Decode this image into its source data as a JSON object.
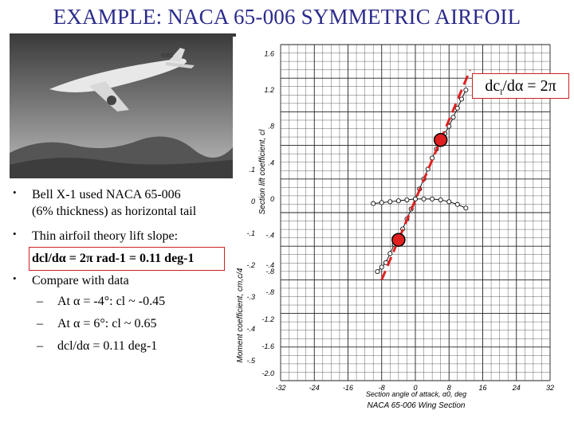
{
  "title": "EXAMPLE: NACA 65-006 SYMMETRIC AIRFOIL",
  "bullets": [
    {
      "text1": "Bell X-1 used NACA 65-006",
      "text2": "(6% thickness) as horizontal tail"
    },
    {
      "text1": "Thin airfoil theory lift slope:",
      "formula": "dcl/dα = 2π rad-1 = 0.11 deg-1"
    },
    {
      "text1": "Compare with data"
    }
  ],
  "sub_bullets": [
    "At α = -4°: cl ~ -0.45",
    "At α = 6°: cl ~ 0.65",
    "dcl/dα = 0.11 deg-1"
  ],
  "slope_label": "dcl/dα = 2π",
  "chart": {
    "caption": "NACA 65-006 Wing Section",
    "xlabel": "Section angle of attack, α0, deg",
    "ylabel_lift": "Section lift coefficient, cl",
    "ylabel_moment": "Moment coefficient, cm,c/4",
    "x_ticks": [
      "-32",
      "-24",
      "-16",
      "-8",
      "0",
      "8",
      "16",
      "24",
      "32"
    ],
    "y_ticks_lift": [
      "1.6",
      "1.2",
      ".8",
      ".4",
      "0",
      "-.4",
      "-.8"
    ],
    "y_ticks_moment": [
      ".1",
      "0",
      "-.1",
      "-.2",
      "-.3",
      "-.4",
      "-.5"
    ],
    "y_ticks_cm": [
      "-.4",
      "-.8",
      "-1.2",
      "-1.6",
      "-2.0"
    ]
  },
  "chart_data": {
    "type": "scatter",
    "title": "NACA 65-006 Wing Section",
    "xlabel": "Section angle of attack, α0, deg",
    "ylabel": "Section lift coefficient, cl",
    "xlim": [
      -32,
      32
    ],
    "ylim": [
      -2.0,
      1.7
    ],
    "series": [
      {
        "name": "",
        "x": [
          -9,
          -8,
          -7,
          -6,
          -5,
          -4,
          -3,
          -2,
          -1,
          0,
          1,
          2,
          3,
          4,
          5,
          6,
          7,
          8,
          9,
          10,
          11,
          12
        ],
        "y": [
          -0.8,
          -0.75,
          -0.7,
          -0.6,
          -0.5,
          -0.45,
          -0.33,
          -0.22,
          -0.11,
          0.0,
          0.11,
          0.22,
          0.33,
          0.45,
          0.55,
          0.65,
          0.72,
          0.8,
          0.9,
          1.0,
          1.1,
          1.2
        ]
      },
      {
        "name": "",
        "x": [
          -10,
          -8,
          -6,
          -4,
          -2,
          0,
          2,
          4,
          6,
          8,
          10,
          12
        ],
        "y": [
          -0.05,
          -0.04,
          -0.03,
          -0.02,
          -0.01,
          0.0,
          0.0,
          0.0,
          -0.01,
          -0.03,
          -0.06,
          -0.1
        ]
      }
    ],
    "highlighted_points": [
      {
        "x": -4,
        "y": -0.45
      },
      {
        "x": 6,
        "y": 0.65
      }
    ]
  }
}
